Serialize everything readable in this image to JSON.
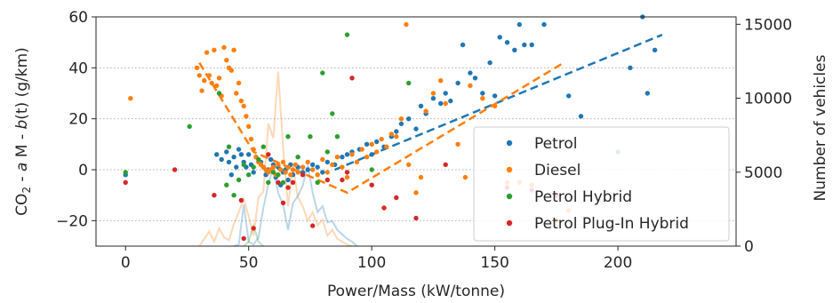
{
  "chart_data": {
    "type": "scatter",
    "xlabel": "Power/Mass (kW/tonne)",
    "ylabel_left_prefix": "CO",
    "ylabel_left_sub": "2",
    "ylabel_left_mid": " - ",
    "ylabel_left_a": "a",
    "ylabel_left_M": " M - ",
    "ylabel_left_b": "b",
    "ylabel_left_suffix": "(t) (g/km)",
    "ylabel_right": "Number of vehicles",
    "xlim": [
      -12,
      248
    ],
    "ylim_left": [
      -30,
      60
    ],
    "ylim_right": [
      0,
      15500
    ],
    "x_ticks": [
      0,
      50,
      100,
      150,
      200
    ],
    "y_left_ticks": [
      -20,
      0,
      20,
      40,
      60
    ],
    "y_right_ticks": [
      0,
      5000,
      10000,
      15000
    ],
    "grid_y": [
      -20,
      0,
      20,
      40
    ],
    "legend_position": "lower-right",
    "series": [
      {
        "name": "Petrol",
        "color": "#1f77b4",
        "points": [
          [
            0,
            -2
          ],
          [
            37,
            6
          ],
          [
            39,
            4
          ],
          [
            41,
            7
          ],
          [
            42,
            3
          ],
          [
            43,
            -2
          ],
          [
            44,
            5
          ],
          [
            45,
            1
          ],
          [
            46,
            8
          ],
          [
            47,
            6
          ],
          [
            48,
            3
          ],
          [
            49,
            1
          ],
          [
            50,
            6
          ],
          [
            51,
            2
          ],
          [
            52,
            -1
          ],
          [
            53,
            5
          ],
          [
            55,
            3
          ],
          [
            56,
            1
          ],
          [
            57,
            -2
          ],
          [
            58,
            0
          ],
          [
            59,
            4
          ],
          [
            60,
            2
          ],
          [
            61,
            -3
          ],
          [
            62,
            1
          ],
          [
            63,
            -6
          ],
          [
            64,
            -1
          ],
          [
            65,
            0
          ],
          [
            66,
            -4
          ],
          [
            67,
            2
          ],
          [
            68,
            -2
          ],
          [
            70,
            1
          ],
          [
            72,
            -1
          ],
          [
            74,
            0
          ],
          [
            76,
            2
          ],
          [
            78,
            1
          ],
          [
            80,
            -1
          ],
          [
            82,
            3
          ],
          [
            85,
            2
          ],
          [
            88,
            5
          ],
          [
            90,
            6
          ],
          [
            92,
            7
          ],
          [
            95,
            8
          ],
          [
            98,
            10
          ],
          [
            100,
            6
          ],
          [
            102,
            11
          ],
          [
            105,
            9
          ],
          [
            108,
            13
          ],
          [
            110,
            15
          ],
          [
            112,
            18
          ],
          [
            115,
            20
          ],
          [
            118,
            16
          ],
          [
            120,
            25
          ],
          [
            122,
            22
          ],
          [
            125,
            28
          ],
          [
            128,
            26
          ],
          [
            130,
            30
          ],
          [
            132,
            27
          ],
          [
            135,
            34
          ],
          [
            137,
            49
          ],
          [
            140,
            38
          ],
          [
            142,
            36
          ],
          [
            145,
            30
          ],
          [
            148,
            42
          ],
          [
            150,
            29
          ],
          [
            152,
            52
          ],
          [
            155,
            50
          ],
          [
            158,
            47
          ],
          [
            160,
            57
          ],
          [
            162,
            49
          ],
          [
            165,
            49
          ],
          [
            170,
            57
          ],
          [
            180,
            29
          ],
          [
            185,
            21
          ],
          [
            200,
            7
          ],
          [
            205,
            40
          ],
          [
            210,
            60
          ],
          [
            212,
            30
          ],
          [
            215,
            47
          ]
        ],
        "trend": [
          [
            85,
            0
          ],
          [
            218,
            53
          ]
        ],
        "hist": [
          [
            44,
            0
          ],
          [
            46,
            100
          ],
          [
            48,
            2800
          ],
          [
            50,
            300
          ],
          [
            52,
            100
          ],
          [
            54,
            600
          ],
          [
            56,
            2600
          ],
          [
            58,
            4200
          ],
          [
            60,
            5300
          ],
          [
            62,
            3600
          ],
          [
            64,
            2800
          ],
          [
            66,
            1100
          ],
          [
            68,
            2900
          ],
          [
            70,
            3400
          ],
          [
            72,
            4100
          ],
          [
            74,
            5500
          ],
          [
            76,
            3600
          ],
          [
            78,
            2300
          ],
          [
            80,
            2700
          ],
          [
            82,
            1600
          ],
          [
            84,
            1700
          ],
          [
            86,
            1100
          ],
          [
            88,
            800
          ],
          [
            90,
            500
          ],
          [
            92,
            300
          ],
          [
            94,
            0
          ]
        ]
      },
      {
        "name": "Diesel",
        "color": "#ff7f0e",
        "points": [
          [
            2,
            28
          ],
          [
            29,
            40
          ],
          [
            30,
            37
          ],
          [
            31,
            31
          ],
          [
            32,
            35
          ],
          [
            33,
            46
          ],
          [
            34,
            37
          ],
          [
            35,
            34
          ],
          [
            36,
            47
          ],
          [
            37,
            33
          ],
          [
            38,
            36
          ],
          [
            39,
            29
          ],
          [
            40,
            48
          ],
          [
            41,
            43
          ],
          [
            42,
            40
          ],
          [
            43,
            39
          ],
          [
            44,
            47
          ],
          [
            45,
            30
          ],
          [
            46,
            34
          ],
          [
            47,
            27
          ],
          [
            48,
            25
          ],
          [
            49,
            21
          ],
          [
            50,
            17
          ],
          [
            51,
            12
          ],
          [
            52,
            8
          ],
          [
            53,
            5
          ],
          [
            54,
            3
          ],
          [
            55,
            2
          ],
          [
            56,
            1
          ],
          [
            57,
            0
          ],
          [
            58,
            -1
          ],
          [
            59,
            0
          ],
          [
            60,
            1
          ],
          [
            61,
            -2
          ],
          [
            62,
            2
          ],
          [
            63,
            0
          ],
          [
            64,
            3
          ],
          [
            65,
            -1
          ],
          [
            66,
            1
          ],
          [
            67,
            -2
          ],
          [
            68,
            0
          ],
          [
            69,
            2
          ],
          [
            70,
            -1
          ],
          [
            72,
            1
          ],
          [
            74,
            3
          ],
          [
            76,
            0
          ],
          [
            78,
            -2
          ],
          [
            80,
            4
          ],
          [
            82,
            -1
          ],
          [
            84,
            2
          ],
          [
            86,
            5
          ],
          [
            88,
            1
          ],
          [
            90,
            -3
          ],
          [
            92,
            6
          ],
          [
            94,
            3
          ],
          [
            96,
            8
          ],
          [
            98,
            5
          ],
          [
            100,
            10
          ],
          [
            102,
            7
          ],
          [
            104,
            12
          ],
          [
            106,
            9
          ],
          [
            108,
            14
          ],
          [
            110,
            13
          ],
          [
            112,
            20
          ],
          [
            114,
            57
          ],
          [
            115,
            2
          ],
          [
            118,
            -9
          ],
          [
            120,
            -3
          ],
          [
            122,
            23
          ],
          [
            125,
            30
          ],
          [
            128,
            35
          ],
          [
            130,
            26
          ],
          [
            135,
            10
          ],
          [
            138,
            -3
          ],
          [
            140,
            33
          ],
          [
            145,
            28
          ],
          [
            150,
            25
          ],
          [
            155,
            -5
          ],
          [
            160,
            -5
          ],
          [
            165,
            -6
          ],
          [
            175,
            -20
          ],
          [
            180,
            -16
          ]
        ],
        "trend": [
          [
            30,
            42
          ],
          [
            52,
            7
          ],
          [
            90,
            -9
          ],
          [
            178,
            42
          ]
        ],
        "hist": [
          [
            30,
            0
          ],
          [
            32,
            500
          ],
          [
            34,
            1000
          ],
          [
            36,
            300
          ],
          [
            38,
            1200
          ],
          [
            40,
            600
          ],
          [
            42,
            400
          ],
          [
            44,
            1500
          ],
          [
            46,
            2300
          ],
          [
            48,
            3200
          ],
          [
            50,
            2000
          ],
          [
            52,
            700
          ],
          [
            54,
            3300
          ],
          [
            56,
            3700
          ],
          [
            58,
            8300
          ],
          [
            60,
            7300
          ],
          [
            62,
            11800
          ],
          [
            64,
            6600
          ],
          [
            66,
            2700
          ],
          [
            68,
            5400
          ],
          [
            70,
            3300
          ],
          [
            72,
            2700
          ],
          [
            74,
            1700
          ],
          [
            76,
            2300
          ],
          [
            78,
            1400
          ],
          [
            80,
            1800
          ],
          [
            82,
            700
          ],
          [
            84,
            1100
          ],
          [
            86,
            500
          ],
          [
            88,
            300
          ],
          [
            90,
            100
          ],
          [
            92,
            0
          ]
        ]
      },
      {
        "name": "Petrol Hybrid",
        "color": "#2ca02c",
        "points": [
          [
            0,
            -1
          ],
          [
            26,
            17
          ],
          [
            38,
            30
          ],
          [
            41,
            -6
          ],
          [
            42,
            9
          ],
          [
            44,
            -10
          ],
          [
            46,
            -4
          ],
          [
            48,
            2
          ],
          [
            50,
            -2
          ],
          [
            52,
            1
          ],
          [
            54,
            4
          ],
          [
            56,
            9
          ],
          [
            58,
            -5
          ],
          [
            60,
            -1
          ],
          [
            62,
            -2
          ],
          [
            64,
            -5
          ],
          [
            66,
            13
          ],
          [
            70,
            5
          ],
          [
            75,
            13
          ],
          [
            78,
            -5
          ],
          [
            80,
            38
          ],
          [
            82,
            7
          ],
          [
            84,
            22
          ],
          [
            86,
            13
          ],
          [
            90,
            53
          ],
          [
            100,
            0
          ],
          [
            115,
            34
          ]
        ],
        "hist": [
          [
            48,
            0
          ],
          [
            50,
            300
          ],
          [
            52,
            1400
          ],
          [
            54,
            300
          ],
          [
            56,
            0
          ]
        ]
      },
      {
        "name": "Petrol Plug-In Hybrid",
        "color": "#d62728",
        "points": [
          [
            0,
            -5
          ],
          [
            20,
            0
          ],
          [
            36,
            -10
          ],
          [
            47,
            -12
          ],
          [
            48,
            -27
          ],
          [
            52,
            -23
          ],
          [
            58,
            6
          ],
          [
            62,
            -5
          ],
          [
            64,
            -13
          ],
          [
            66,
            -7
          ],
          [
            68,
            -5
          ],
          [
            72,
            -2
          ],
          [
            76,
            -22
          ],
          [
            82,
            -4
          ],
          [
            88,
            -4
          ],
          [
            90,
            -1
          ],
          [
            92,
            36
          ],
          [
            100,
            -6
          ],
          [
            105,
            -15
          ],
          [
            110,
            -11
          ],
          [
            118,
            -19
          ],
          [
            130,
            2
          ],
          [
            155,
            -7
          ],
          [
            165,
            -8
          ],
          [
            175,
            -10
          ]
        ],
        "hist": []
      }
    ]
  }
}
